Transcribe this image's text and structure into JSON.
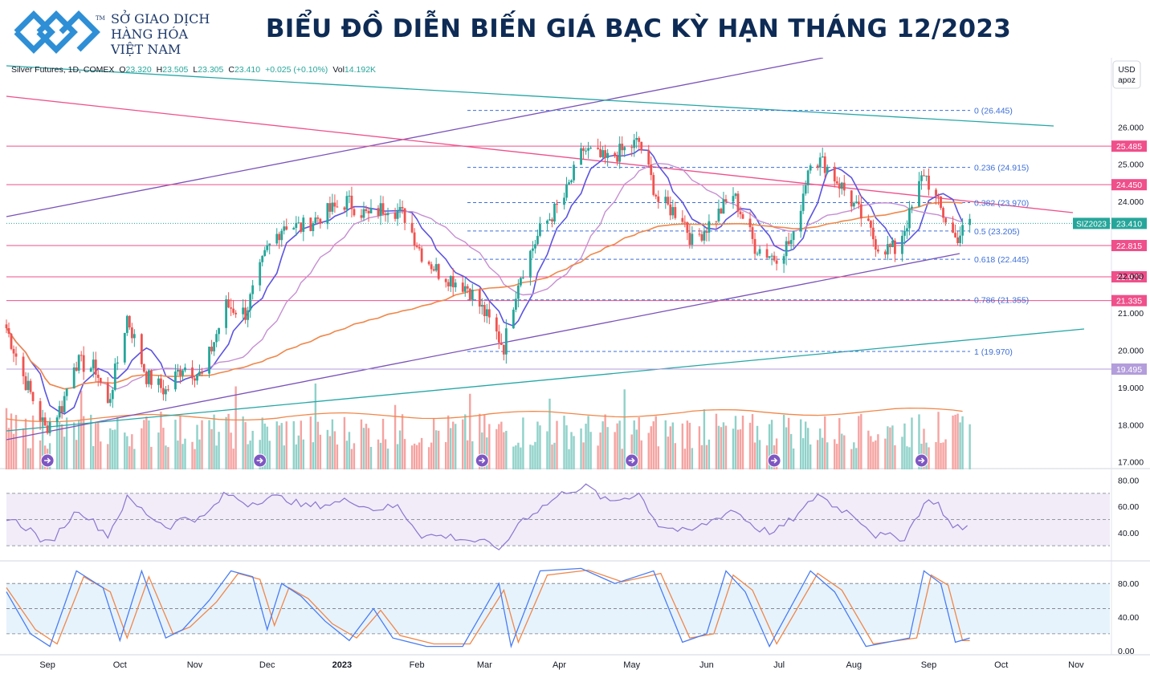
{
  "brand": {
    "line1": "SỞ GIAO DỊCH",
    "line2": "HÀNG HÓA",
    "line3": "VIỆT NAM",
    "tm": "TM"
  },
  "colors": {
    "up": "#26a69a",
    "down": "#ef5350",
    "ma_fast": "#5b54e0",
    "ma_mid": "#c68fd2",
    "ma_slow": "#f0874a",
    "pink_line": "#ef4f8a",
    "teal_line": "#26a6a6",
    "purple_line": "#7b52b9",
    "fib": "#3d6fd9",
    "rsi": "#8b76cf",
    "stoch_k": "#4a7df2",
    "stoch_d": "#f0874a"
  },
  "chart_data": {
    "type": "candlestick",
    "title": "BIỂU ĐỒ DIỄN BIẾN GIÁ BẠC KỲ HẠN THÁNG 12/2023",
    "legend": "Silver Futures, 1D, COMEX",
    "ohlc": {
      "o_label": "O",
      "o": "23.320",
      "h_label": "H",
      "h": "23.505",
      "l_label": "L",
      "l": "23.305",
      "c_label": "C",
      "c": "23.410",
      "change": "+0.025 (+0.10%)",
      "vol_label": "Vol",
      "vol": "14.192K"
    },
    "currency": "USD",
    "unit": "apoz",
    "price_ticks": [
      "26.000",
      "25.000",
      "24.000",
      "22.000",
      "21.000",
      "20.000",
      "19.000",
      "18.000",
      "17.000"
    ],
    "price_values": [
      26,
      25,
      24,
      22,
      21,
      20,
      19,
      18,
      17
    ],
    "ylim": [
      16.8,
      27.3
    ],
    "x_labels": [
      "Sep",
      "Oct",
      "Nov",
      "Dec",
      "2023",
      "Feb",
      "Mar",
      "Apr",
      "May",
      "Jun",
      "Jul",
      "Aug",
      "Sep",
      "Oct",
      "Nov"
    ],
    "x_dates": [
      "2022-09-01",
      "2022-10-01",
      "2022-11-01",
      "2022-12-01",
      "2023-01-01",
      "2023-02-01",
      "2023-03-01",
      "2023-04-01",
      "2023-05-01",
      "2023-06-01",
      "2023-07-01",
      "2023-08-01",
      "2023-09-01",
      "2023-10-01",
      "2023-11-01"
    ],
    "xlim": [
      "2022-08-15",
      "2023-11-15"
    ],
    "close_series": [
      {
        "date": "2022-08-15",
        "value": 20.6
      },
      {
        "date": "2022-08-22",
        "value": 19.3
      },
      {
        "date": "2022-08-31",
        "value": 17.9
      },
      {
        "date": "2022-09-07",
        "value": 18.5
      },
      {
        "date": "2022-09-12",
        "value": 19.7
      },
      {
        "date": "2022-09-21",
        "value": 19.5
      },
      {
        "date": "2022-09-26",
        "value": 18.5
      },
      {
        "date": "2022-10-04",
        "value": 20.9
      },
      {
        "date": "2022-10-12",
        "value": 19.3
      },
      {
        "date": "2022-10-20",
        "value": 18.9
      },
      {
        "date": "2022-10-27",
        "value": 19.6
      },
      {
        "date": "2022-11-04",
        "value": 19.3
      },
      {
        "date": "2022-11-14",
        "value": 21.2
      },
      {
        "date": "2022-11-22",
        "value": 21.0
      },
      {
        "date": "2022-12-01",
        "value": 22.7
      },
      {
        "date": "2022-12-08",
        "value": 23.4
      },
      {
        "date": "2022-12-15",
        "value": 23.3
      },
      {
        "date": "2022-12-23",
        "value": 23.6
      },
      {
        "date": "2023-01-03",
        "value": 24.0
      },
      {
        "date": "2023-01-12",
        "value": 23.6
      },
      {
        "date": "2023-01-20",
        "value": 23.9
      },
      {
        "date": "2023-01-27",
        "value": 23.6
      },
      {
        "date": "2023-02-03",
        "value": 22.6
      },
      {
        "date": "2023-02-10",
        "value": 22.1
      },
      {
        "date": "2023-02-22",
        "value": 21.7
      },
      {
        "date": "2023-03-01",
        "value": 21.0
      },
      {
        "date": "2023-03-09",
        "value": 20.1
      },
      {
        "date": "2023-03-15",
        "value": 21.9
      },
      {
        "date": "2023-03-24",
        "value": 23.2
      },
      {
        "date": "2023-04-03",
        "value": 24.1
      },
      {
        "date": "2023-04-11",
        "value": 25.4
      },
      {
        "date": "2023-04-20",
        "value": 25.1
      },
      {
        "date": "2023-05-04",
        "value": 25.6
      },
      {
        "date": "2023-05-12",
        "value": 24.0
      },
      {
        "date": "2023-05-22",
        "value": 23.6
      },
      {
        "date": "2023-05-26",
        "value": 22.9
      },
      {
        "date": "2023-06-05",
        "value": 23.6
      },
      {
        "date": "2023-06-12",
        "value": 24.2
      },
      {
        "date": "2023-06-21",
        "value": 22.8
      },
      {
        "date": "2023-06-29",
        "value": 22.5
      },
      {
        "date": "2023-07-07",
        "value": 23.0
      },
      {
        "date": "2023-07-14",
        "value": 25.2
      },
      {
        "date": "2023-07-20",
        "value": 25.0
      },
      {
        "date": "2023-07-28",
        "value": 24.3
      },
      {
        "date": "2023-08-04",
        "value": 23.6
      },
      {
        "date": "2023-08-11",
        "value": 22.8
      },
      {
        "date": "2023-08-18",
        "value": 22.7
      },
      {
        "date": "2023-08-24",
        "value": 23.6
      },
      {
        "date": "2023-08-30",
        "value": 24.8
      },
      {
        "date": "2023-09-05",
        "value": 23.9
      },
      {
        "date": "2023-09-12",
        "value": 23.0
      },
      {
        "date": "2023-09-18",
        "value": 23.41
      }
    ],
    "horizontal_levels": [
      {
        "label": "25.485",
        "value": 25.485,
        "color": "#ef4f8a"
      },
      {
        "label": "24.450",
        "value": 24.45,
        "color": "#ef4f8a"
      },
      {
        "label": "22.815",
        "value": 22.815,
        "color": "#ef4f8a"
      },
      {
        "label": "21.975",
        "value": 21.975,
        "color": "#ef4f8a"
      },
      {
        "label": "21.335",
        "value": 21.335,
        "color": "#ef4f8a"
      },
      {
        "label": "19.495",
        "value": 19.495,
        "color": "#b39ddb"
      }
    ],
    "current_price": {
      "symbol": "SIZ2023",
      "label": "23.410",
      "value": 23.41
    },
    "fib_levels": [
      {
        "label": "0 (26.445)",
        "value": 26.445
      },
      {
        "label": "0.236 (24.915)",
        "value": 24.915
      },
      {
        "label": "0.382 (23.970)",
        "value": 23.97
      },
      {
        "label": "0.5 (23.205)",
        "value": 23.205
      },
      {
        "label": "0.618 (22.445)",
        "value": 22.445
      },
      {
        "label": "0.786 (21.355)",
        "value": 21.355
      },
      {
        "label": "1 (19.970)",
        "value": 19.97
      }
    ],
    "rsi": {
      "ticks": [
        "80.00",
        "60.00",
        "40.00"
      ],
      "tick_values": [
        80,
        60,
        40
      ],
      "ylim": [
        27,
        84
      ],
      "band": [
        70,
        30
      ],
      "series": [
        {
          "date": "2022-08-15",
          "value": 52
        },
        {
          "date": "2022-08-25",
          "value": 42
        },
        {
          "date": "2022-09-01",
          "value": 30
        },
        {
          "date": "2022-09-09",
          "value": 48
        },
        {
          "date": "2022-09-14",
          "value": 58
        },
        {
          "date": "2022-09-26",
          "value": 38
        },
        {
          "date": "2022-10-04",
          "value": 66
        },
        {
          "date": "2022-10-14",
          "value": 52
        },
        {
          "date": "2022-10-21",
          "value": 44
        },
        {
          "date": "2022-10-28",
          "value": 52
        },
        {
          "date": "2022-11-04",
          "value": 50
        },
        {
          "date": "2022-11-14",
          "value": 70
        },
        {
          "date": "2022-11-23",
          "value": 62
        },
        {
          "date": "2022-12-02",
          "value": 67
        },
        {
          "date": "2022-12-09",
          "value": 66
        },
        {
          "date": "2022-12-16",
          "value": 60
        },
        {
          "date": "2022-12-27",
          "value": 62
        },
        {
          "date": "2023-01-05",
          "value": 65
        },
        {
          "date": "2023-01-13",
          "value": 58
        },
        {
          "date": "2023-01-24",
          "value": 60
        },
        {
          "date": "2023-02-03",
          "value": 38
        },
        {
          "date": "2023-02-15",
          "value": 37
        },
        {
          "date": "2023-03-01",
          "value": 32
        },
        {
          "date": "2023-03-09",
          "value": 28
        },
        {
          "date": "2023-03-15",
          "value": 48
        },
        {
          "date": "2023-03-27",
          "value": 62
        },
        {
          "date": "2023-04-04",
          "value": 72
        },
        {
          "date": "2023-04-13",
          "value": 75
        },
        {
          "date": "2023-04-21",
          "value": 63
        },
        {
          "date": "2023-05-04",
          "value": 70
        },
        {
          "date": "2023-05-12",
          "value": 46
        },
        {
          "date": "2023-05-24",
          "value": 40
        },
        {
          "date": "2023-06-02",
          "value": 48
        },
        {
          "date": "2023-06-12",
          "value": 58
        },
        {
          "date": "2023-06-22",
          "value": 43
        },
        {
          "date": "2023-06-29",
          "value": 40
        },
        {
          "date": "2023-07-10",
          "value": 55
        },
        {
          "date": "2023-07-17",
          "value": 70
        },
        {
          "date": "2023-07-24",
          "value": 60
        },
        {
          "date": "2023-08-01",
          "value": 54
        },
        {
          "date": "2023-08-10",
          "value": 38
        },
        {
          "date": "2023-08-22",
          "value": 36
        },
        {
          "date": "2023-08-30",
          "value": 62
        },
        {
          "date": "2023-09-04",
          "value": 65
        },
        {
          "date": "2023-09-11",
          "value": 43
        },
        {
          "date": "2023-09-18",
          "value": 45
        }
      ]
    },
    "stochastic": {
      "ticks": [
        "80.00",
        "40.00",
        "0.00"
      ],
      "tick_values": [
        80,
        40,
        0
      ],
      "ylim": [
        -4,
        106
      ],
      "band": [
        80,
        20
      ],
      "k": [
        {
          "date": "2022-08-15",
          "value": 70
        },
        {
          "date": "2022-08-25",
          "value": 20
        },
        {
          "date": "2022-09-02",
          "value": 5
        },
        {
          "date": "2022-09-13",
          "value": 95
        },
        {
          "date": "2022-09-24",
          "value": 75
        },
        {
          "date": "2022-10-01",
          "value": 12
        },
        {
          "date": "2022-10-10",
          "value": 95
        },
        {
          "date": "2022-10-20",
          "value": 15
        },
        {
          "date": "2022-10-27",
          "value": 25
        },
        {
          "date": "2022-11-07",
          "value": 60
        },
        {
          "date": "2022-11-16",
          "value": 95
        },
        {
          "date": "2022-11-25",
          "value": 88
        },
        {
          "date": "2022-12-01",
          "value": 25
        },
        {
          "date": "2022-12-07",
          "value": 80
        },
        {
          "date": "2022-12-15",
          "value": 65
        },
        {
          "date": "2022-12-25",
          "value": 35
        },
        {
          "date": "2023-01-04",
          "value": 12
        },
        {
          "date": "2023-01-14",
          "value": 50
        },
        {
          "date": "2023-01-22",
          "value": 15
        },
        {
          "date": "2023-02-05",
          "value": 5
        },
        {
          "date": "2023-02-20",
          "value": 5
        },
        {
          "date": "2023-03-07",
          "value": 80
        },
        {
          "date": "2023-03-12",
          "value": 5
        },
        {
          "date": "2023-03-24",
          "value": 95
        },
        {
          "date": "2023-04-10",
          "value": 98
        },
        {
          "date": "2023-04-24",
          "value": 80
        },
        {
          "date": "2023-05-10",
          "value": 95
        },
        {
          "date": "2023-05-22",
          "value": 10
        },
        {
          "date": "2023-06-01",
          "value": 20
        },
        {
          "date": "2023-06-09",
          "value": 95
        },
        {
          "date": "2023-06-17",
          "value": 70
        },
        {
          "date": "2023-06-27",
          "value": 5
        },
        {
          "date": "2023-07-14",
          "value": 95
        },
        {
          "date": "2023-07-24",
          "value": 70
        },
        {
          "date": "2023-08-06",
          "value": 5
        },
        {
          "date": "2023-08-24",
          "value": 15
        },
        {
          "date": "2023-08-30",
          "value": 95
        },
        {
          "date": "2023-09-06",
          "value": 80
        },
        {
          "date": "2023-09-12",
          "value": 10
        },
        {
          "date": "2023-09-18",
          "value": 15
        }
      ],
      "d": [
        {
          "date": "2022-08-15",
          "value": 75
        },
        {
          "date": "2022-08-27",
          "value": 25
        },
        {
          "date": "2022-09-05",
          "value": 8
        },
        {
          "date": "2022-09-16",
          "value": 88
        },
        {
          "date": "2022-09-27",
          "value": 70
        },
        {
          "date": "2022-10-04",
          "value": 15
        },
        {
          "date": "2022-10-13",
          "value": 88
        },
        {
          "date": "2022-10-23",
          "value": 20
        },
        {
          "date": "2022-10-30",
          "value": 28
        },
        {
          "date": "2022-11-10",
          "value": 58
        },
        {
          "date": "2022-11-19",
          "value": 92
        },
        {
          "date": "2022-11-28",
          "value": 85
        },
        {
          "date": "2022-12-04",
          "value": 30
        },
        {
          "date": "2022-12-10",
          "value": 75
        },
        {
          "date": "2022-12-18",
          "value": 62
        },
        {
          "date": "2022-12-28",
          "value": 32
        },
        {
          "date": "2023-01-07",
          "value": 15
        },
        {
          "date": "2023-01-17",
          "value": 48
        },
        {
          "date": "2023-01-25",
          "value": 18
        },
        {
          "date": "2023-02-08",
          "value": 8
        },
        {
          "date": "2023-02-23",
          "value": 8
        },
        {
          "date": "2023-03-09",
          "value": 72
        },
        {
          "date": "2023-03-15",
          "value": 10
        },
        {
          "date": "2023-03-27",
          "value": 90
        },
        {
          "date": "2023-04-13",
          "value": 96
        },
        {
          "date": "2023-04-27",
          "value": 82
        },
        {
          "date": "2023-05-13",
          "value": 92
        },
        {
          "date": "2023-05-25",
          "value": 15
        },
        {
          "date": "2023-06-04",
          "value": 20
        },
        {
          "date": "2023-06-12",
          "value": 90
        },
        {
          "date": "2023-06-20",
          "value": 72
        },
        {
          "date": "2023-06-30",
          "value": 8
        },
        {
          "date": "2023-07-17",
          "value": 92
        },
        {
          "date": "2023-07-27",
          "value": 72
        },
        {
          "date": "2023-08-09",
          "value": 8
        },
        {
          "date": "2023-08-27",
          "value": 15
        },
        {
          "date": "2023-09-02",
          "value": 90
        },
        {
          "date": "2023-09-09",
          "value": 78
        },
        {
          "date": "2023-09-15",
          "value": 12
        },
        {
          "date": "2023-09-18",
          "value": 12
        }
      ]
    }
  }
}
